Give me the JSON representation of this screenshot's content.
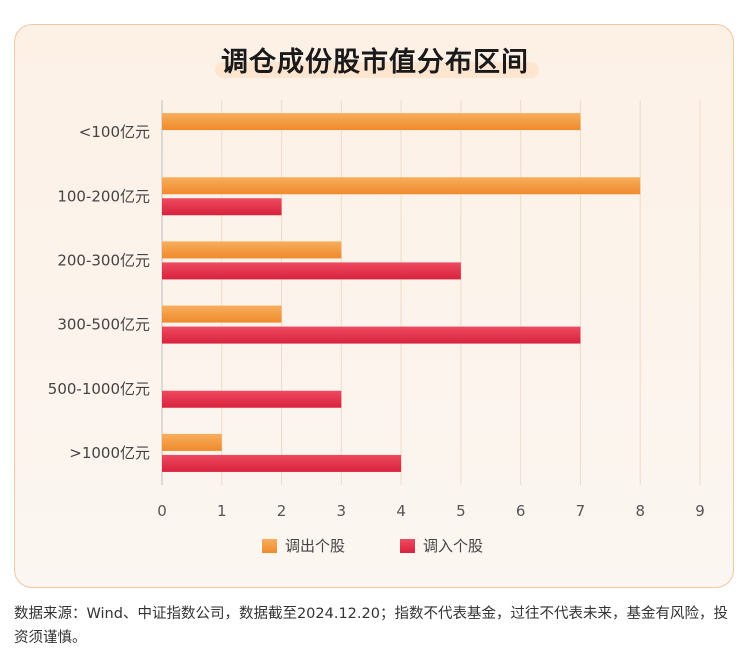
{
  "title": "调仓成份股市值分布区间",
  "footer": "数据来源：Wind、中证指数公司，数据截至2024.12.20；指数不代表基金，过往不代表未来，基金有风险，投资须谨慎。",
  "colors": {
    "out": "#f39a3c",
    "in": "#e1304c"
  },
  "chart_data": {
    "type": "bar",
    "orientation": "horizontal",
    "title": "调仓成份股市值分布区间",
    "categories": [
      "<100亿元",
      "100-200亿元",
      "200-300亿元",
      "300-500亿元",
      "500-1000亿元",
      ">1000亿元"
    ],
    "series": [
      {
        "name": "调出个股",
        "values": [
          7,
          8,
          3,
          2,
          0,
          1
        ]
      },
      {
        "name": "调入个股",
        "values": [
          0,
          2,
          5,
          7,
          3,
          4
        ]
      }
    ],
    "xlim": [
      0,
      9
    ],
    "xticks": [
      "0",
      "1",
      "2",
      "3",
      "4",
      "5",
      "6",
      "7",
      "8",
      "9"
    ],
    "grid": true,
    "legend": "bottom"
  }
}
